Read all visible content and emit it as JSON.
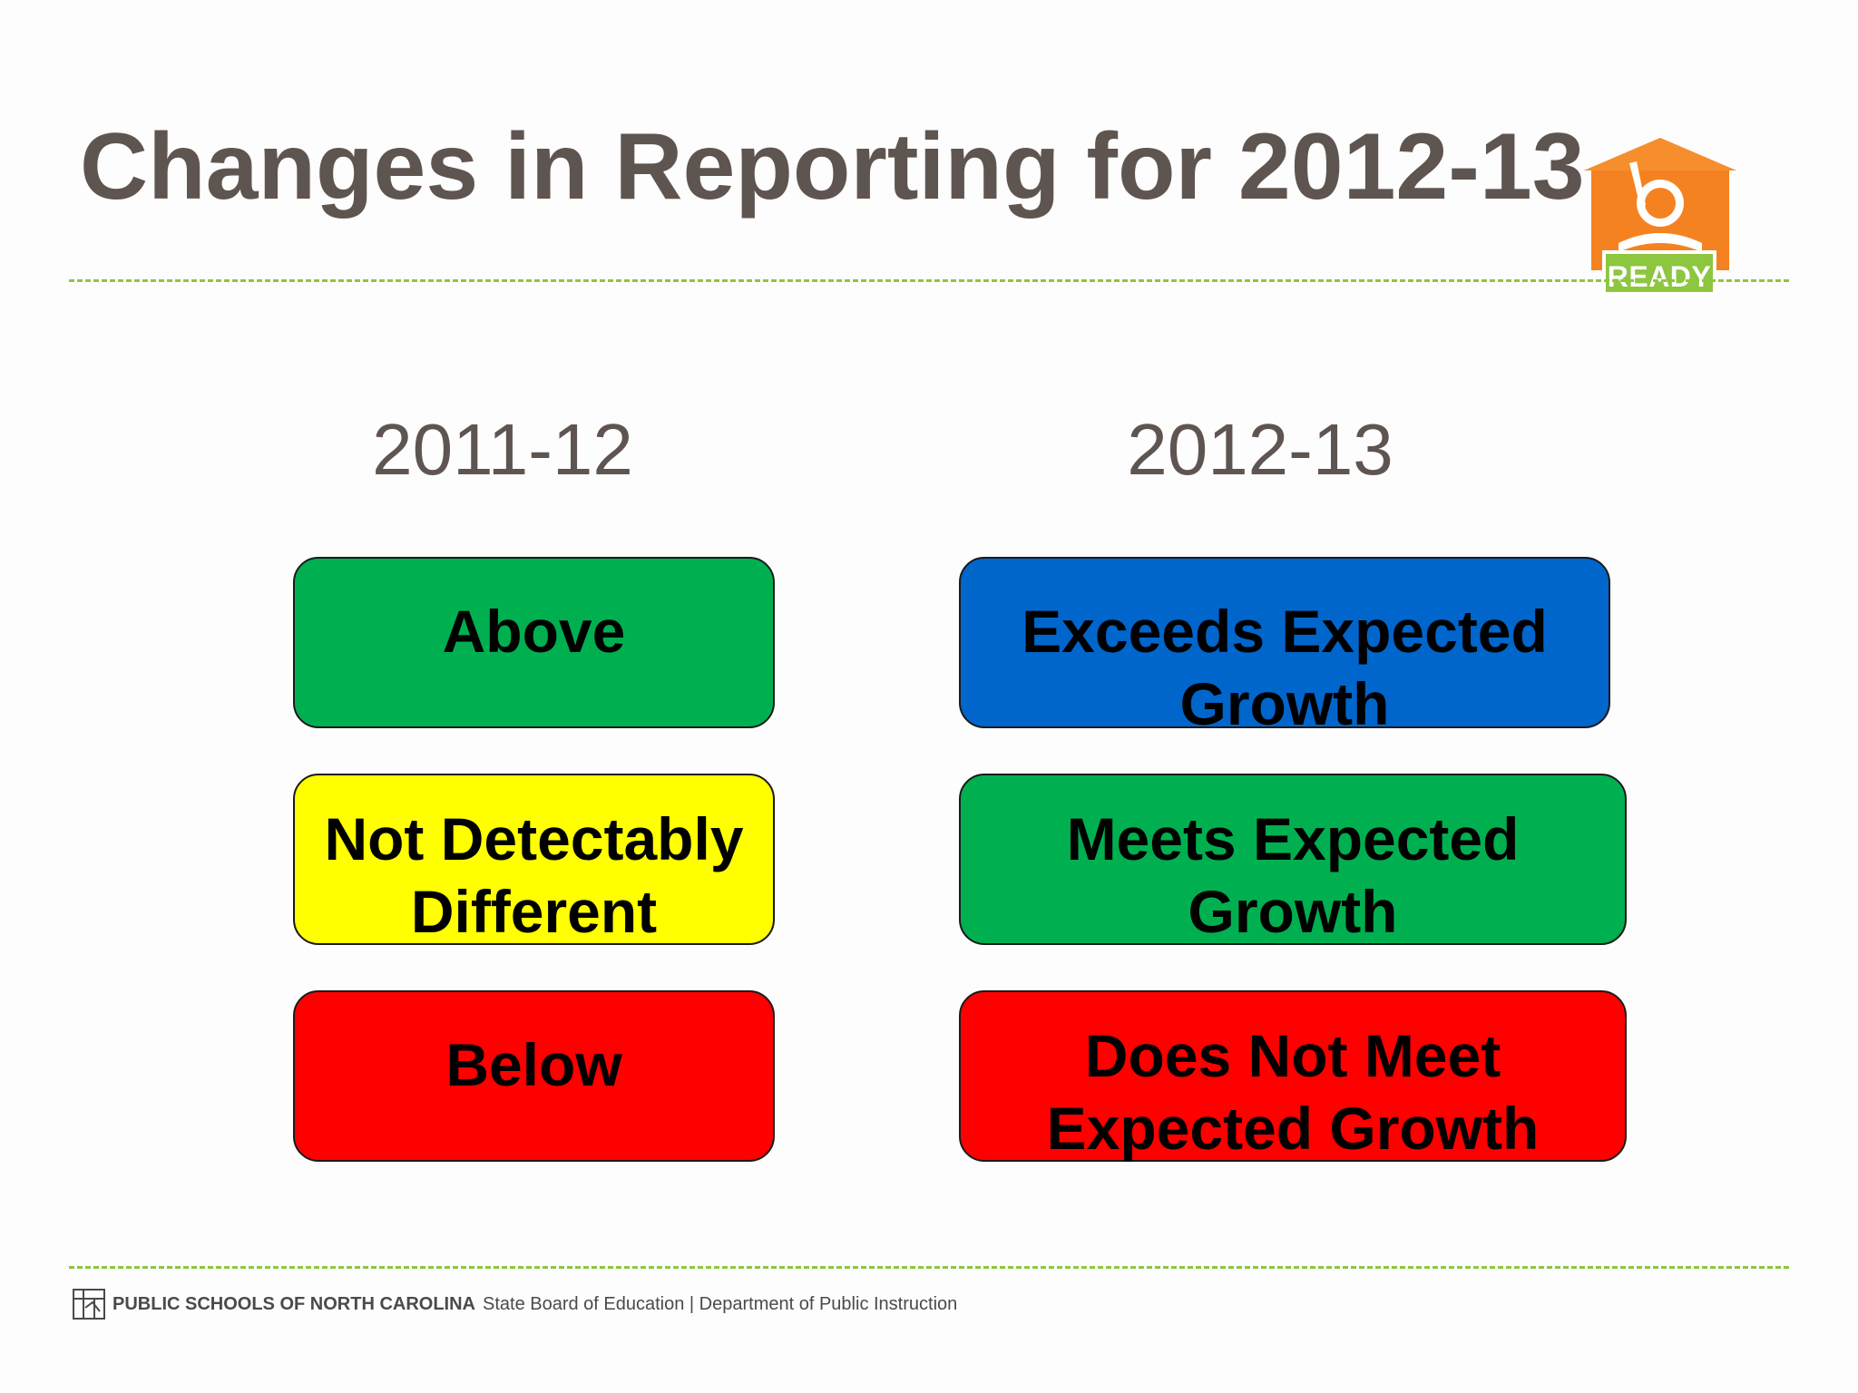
{
  "slide": {
    "title": "Changes in Reporting for 2012-13"
  },
  "logo": {
    "badge_text": "READY",
    "icon": "ready-house-reader-icon",
    "colors": {
      "house": "#f58220",
      "badge": "#8dc63f"
    }
  },
  "columns": {
    "left_header": "2011-12",
    "right_header": "2012-13"
  },
  "left_boxes": [
    {
      "label": "Above",
      "color": "#00b050"
    },
    {
      "label": "Not Detectably\nDifferent",
      "color": "#ffff00"
    },
    {
      "label": "Below",
      "color": "#ff0000"
    }
  ],
  "right_boxes": [
    {
      "label": "Exceeds Expected\nGrowth",
      "color": "#0066cc"
    },
    {
      "label": "Meets Expected\nGrowth",
      "color": "#00b050"
    },
    {
      "label": "Does Not Meet\nExpected Growth",
      "color": "#ff0000"
    }
  ],
  "footer": {
    "seal_icon": "nc-state-seal-icon",
    "org": "PUBLIC SCHOOLS OF NORTH CAROLINA",
    "rest": "State Board of Education | Department of Public Instruction"
  },
  "colors": {
    "title_text": "#5f5550",
    "dashed_rule": "#8dc63f"
  }
}
